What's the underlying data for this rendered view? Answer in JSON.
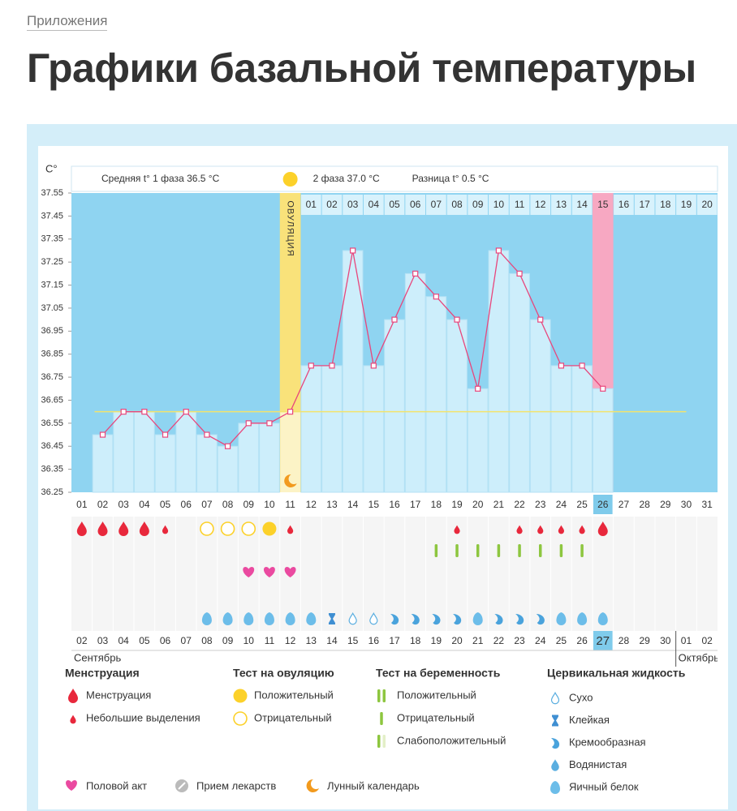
{
  "breadcrumb": "Приложения",
  "title": "Графики базальной температуры",
  "chart_data": {
    "type": "line",
    "unit": "C°",
    "phase1_note": "Средняя t° 1 фаза 36.5 °C",
    "phase2_note": "2 фаза 37.0 °C",
    "difference_note": "Разница t° 0.5 °C",
    "ovulation_label": "ОВУЛЯЦИЯ",
    "categories": [
      "01",
      "02",
      "03",
      "04",
      "05",
      "06",
      "07",
      "08",
      "09",
      "10",
      "11",
      "12",
      "13",
      "14",
      "15",
      "16",
      "17",
      "18",
      "19",
      "20",
      "21",
      "22",
      "23",
      "24",
      "25",
      "26",
      "27",
      "28",
      "29",
      "30",
      "31"
    ],
    "phase2_days": [
      "01",
      "02",
      "03",
      "04",
      "05",
      "06",
      "07",
      "08",
      "09",
      "10",
      "11",
      "12",
      "13",
      "14",
      "15",
      "16",
      "17",
      "18",
      "19",
      "20"
    ],
    "dates": [
      "02",
      "03",
      "04",
      "05",
      "06",
      "07",
      "08",
      "09",
      "10",
      "11",
      "12",
      "13",
      "14",
      "15",
      "16",
      "17",
      "18",
      "19",
      "20",
      "21",
      "22",
      "23",
      "24",
      "25",
      "26",
      "27",
      "28",
      "29",
      "30",
      "01",
      "02"
    ],
    "date_is_weekend": [
      true,
      true,
      false,
      false,
      false,
      false,
      false,
      true,
      true,
      false,
      false,
      false,
      false,
      false,
      true,
      true,
      false,
      false,
      false,
      false,
      false,
      true,
      true,
      false,
      false,
      false,
      false,
      false,
      true,
      true,
      false
    ],
    "months": [
      {
        "label": "Сентябрь",
        "index": 0
      },
      {
        "label": "Октябрь",
        "index": 29
      }
    ],
    "ovulation_index": 10,
    "today_index": 25,
    "series": [
      {
        "name": "Температура",
        "color": "#e8467c",
        "values": [
          null,
          36.5,
          36.6,
          36.6,
          36.5,
          36.6,
          36.5,
          36.45,
          36.55,
          36.55,
          36.6,
          36.8,
          36.8,
          37.3,
          36.8,
          37.0,
          37.2,
          37.1,
          37.0,
          36.7,
          37.3,
          37.2,
          37.0,
          36.8,
          36.8,
          36.7,
          null,
          null,
          null,
          null,
          null
        ]
      }
    ],
    "coverline": 36.6,
    "ylim": [
      36.25,
      37.55
    ],
    "yticks": [
      36.25,
      36.35,
      36.45,
      36.55,
      36.65,
      36.75,
      36.85,
      36.95,
      37.05,
      37.15,
      37.25,
      37.35,
      37.45,
      37.55
    ],
    "menstruation": [
      "heavy",
      "heavy",
      "heavy",
      "heavy",
      "light",
      null,
      null,
      null,
      null,
      null,
      "light",
      null,
      null,
      null,
      null,
      null,
      null,
      null,
      "light",
      null,
      null,
      "light",
      "light",
      "light",
      "light",
      "heavy",
      null,
      null,
      null,
      null,
      null
    ],
    "ovulation_test": [
      null,
      null,
      null,
      null,
      null,
      null,
      "negative",
      "negative",
      "negative",
      "positive",
      null,
      null,
      null,
      null,
      null,
      null,
      null,
      null,
      null,
      null,
      null,
      null,
      null,
      null,
      null,
      null,
      null,
      null,
      null,
      null,
      null
    ],
    "pregnancy_test": [
      null,
      null,
      null,
      null,
      null,
      null,
      null,
      null,
      null,
      null,
      null,
      null,
      null,
      null,
      null,
      null,
      null,
      "negative",
      "negative",
      "negative",
      "negative",
      "negative",
      "negative",
      "negative",
      "negative",
      null,
      null,
      null,
      null,
      null,
      null
    ],
    "intercourse": [
      null,
      null,
      null,
      null,
      null,
      null,
      null,
      null,
      "heart",
      "heart",
      "heart",
      null,
      null,
      null,
      null,
      null,
      null,
      null,
      null,
      null,
      null,
      null,
      null,
      null,
      null,
      null,
      null,
      null,
      null,
      null,
      null
    ],
    "cervical_fluid": [
      null,
      null,
      null,
      null,
      null,
      null,
      "eggwhite",
      "eggwhite",
      "eggwhite",
      "eggwhite",
      "eggwhite",
      "eggwhite",
      "sticky",
      "dry",
      "dry",
      "creamy",
      "creamy",
      "creamy",
      "creamy",
      "eggwhite",
      "creamy",
      "creamy",
      "creamy",
      "eggwhite",
      "eggwhite",
      "eggwhite",
      null,
      null,
      null,
      null,
      null
    ]
  },
  "legend": [
    {
      "title": "Менструация",
      "items": [
        {
          "icon": "heavy",
          "label": "Менструация"
        },
        {
          "icon": "light",
          "label": "Небольшие выделения"
        }
      ]
    },
    {
      "title": "Тест на овуляцию",
      "items": [
        {
          "icon": "positive",
          "label": "Положительный"
        },
        {
          "icon": "negative",
          "label": "Отрицательный"
        }
      ]
    },
    {
      "title": "Тест на беременность",
      "items": [
        {
          "icon": "preg-positive",
          "label": "Положительный"
        },
        {
          "icon": "preg-negative",
          "label": "Отрицательный"
        },
        {
          "icon": "preg-weak",
          "label": "Слабоположительный"
        }
      ]
    },
    {
      "title": "Цервикальная жидкость",
      "items": [
        {
          "icon": "dry",
          "label": "Сухо"
        },
        {
          "icon": "sticky",
          "label": "Клейкая"
        },
        {
          "icon": "creamy",
          "label": "Кремообразная"
        },
        {
          "icon": "watery",
          "label": "Водянистая"
        },
        {
          "icon": "eggwhite",
          "label": "Яичный белок"
        }
      ]
    }
  ],
  "legend_extra": [
    {
      "icon": "heart",
      "label": "Половой акт"
    },
    {
      "icon": "pill",
      "label": "Прием лекарств"
    },
    {
      "icon": "moon",
      "label": "Лунный календарь"
    }
  ]
}
